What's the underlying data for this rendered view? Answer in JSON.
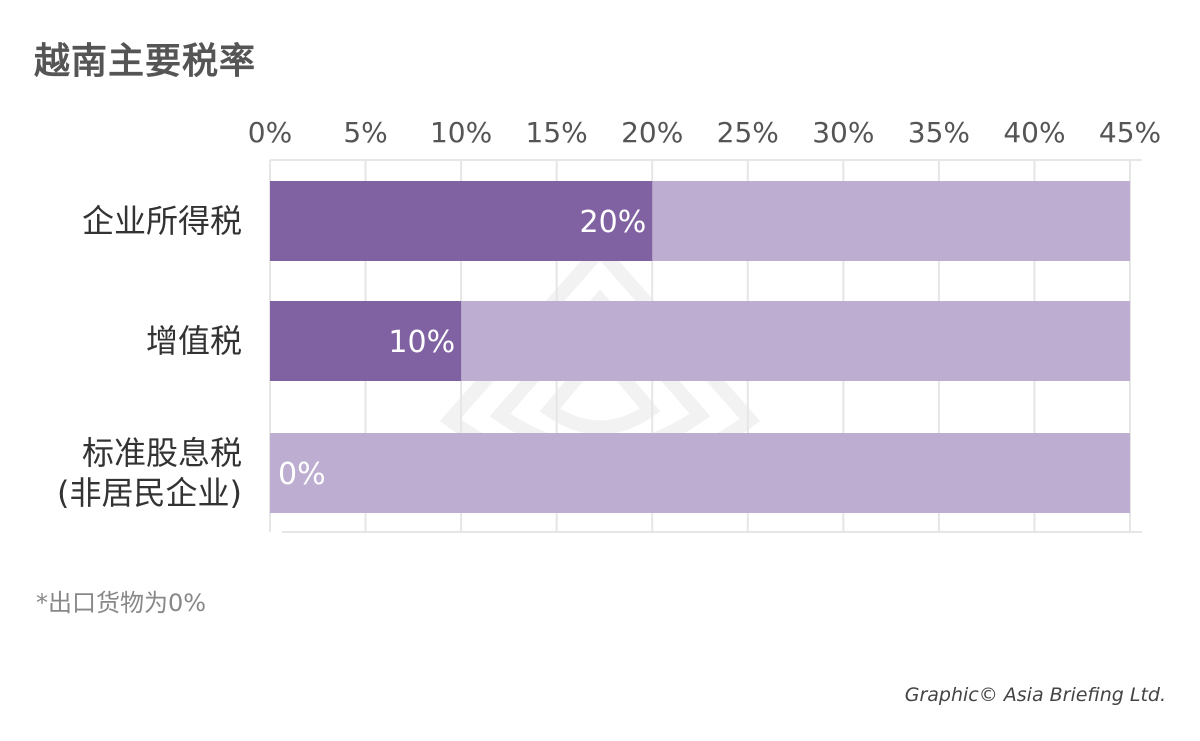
{
  "chart_data": {
    "type": "bar",
    "orientation": "horizontal",
    "title": "越南主要税率",
    "categories": [
      [
        "企业所得税"
      ],
      [
        "增值税"
      ],
      [
        "标准股息税",
        "(非居民企业)"
      ]
    ],
    "series": [
      {
        "values": [
          20,
          10,
          0
        ]
      }
    ],
    "data_labels": [
      "20%",
      "10%",
      "0%"
    ],
    "xlim": [
      0,
      45
    ],
    "x_ticks": [
      0,
      5,
      10,
      15,
      20,
      25,
      30,
      35,
      40,
      45
    ],
    "x_tick_labels": [
      "0%",
      "5%",
      "10%",
      "15%",
      "20%",
      "25%",
      "30%",
      "35%",
      "40%",
      "45%"
    ],
    "axis_position": "top",
    "grid": true,
    "legend": "none",
    "colors": {
      "value_bar": "#8062a3",
      "background_bar": "#bdaed1",
      "grid": "#e6e6e6"
    }
  },
  "footnote": "*出口货物为0%",
  "credit": "Graphic© Asia Briefing Ltd."
}
